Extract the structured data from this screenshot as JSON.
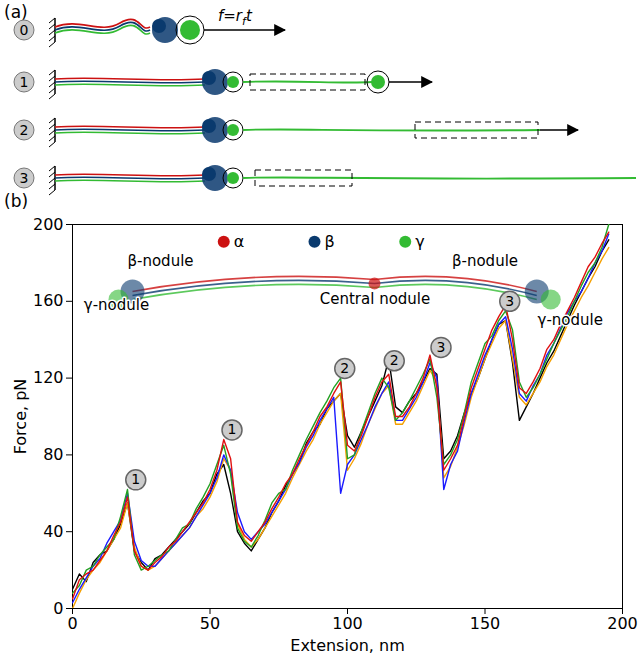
{
  "panel_a": {
    "label": "(a)",
    "stages": [
      "0",
      "1",
      "2",
      "3"
    ],
    "force_label": [
      "f=r",
      "f",
      "t"
    ]
  },
  "chart_data": {
    "type": "line",
    "panel_label": "(b)",
    "x_label": "Extension, nm",
    "y_label": "Force, pN",
    "xlim": [
      0,
      200
    ],
    "ylim": [
      0,
      200
    ],
    "xticks": [
      0,
      50,
      100,
      150,
      200
    ],
    "yticks": [
      0,
      40,
      80,
      120,
      160,
      200
    ],
    "grid": false,
    "x": [
      0,
      2.5,
      5,
      7.5,
      10,
      12.5,
      15,
      17.5,
      20,
      22.5,
      25,
      27.5,
      30,
      32.5,
      35,
      37.5,
      40,
      42.5,
      45,
      47.5,
      50,
      52.5,
      55,
      57.5,
      60,
      62.5,
      65,
      67.5,
      70,
      72.5,
      75,
      77.5,
      80,
      82.5,
      85,
      87.5,
      90,
      92.5,
      95,
      97.5,
      100,
      102.5,
      105,
      107.5,
      110,
      112.5,
      115,
      117.5,
      120,
      122.5,
      125,
      127.5,
      130,
      132.5,
      135,
      137.5,
      140,
      142.5,
      145,
      147.5,
      150,
      152.5,
      155,
      157.5,
      160,
      162.5,
      165,
      167.5,
      170,
      172.5,
      175,
      177.5,
      180,
      182.5,
      185,
      187.5,
      190,
      192.5,
      195
    ],
    "series": [
      {
        "color": "#000000",
        "values": [
          10,
          18,
          14,
          24,
          28,
          30,
          36,
          44,
          55,
          30,
          24,
          20,
          26,
          28,
          32,
          36,
          40,
          44,
          50,
          56,
          60,
          70,
          75,
          60,
          40,
          34,
          30,
          36,
          42,
          50,
          56,
          64,
          70,
          76,
          86,
          92,
          96,
          104,
          108,
          112,
          90,
          84,
          92,
          100,
          108,
          116,
          130,
          105,
          102,
          108,
          112,
          118,
          125,
          122,
          78,
          82,
          90,
          102,
          112,
          120,
          130,
          140,
          148,
          150,
          128,
          98,
          105,
          112,
          120,
          128,
          134,
          142,
          150,
          158,
          165,
          172,
          178,
          186,
          192
        ]
      },
      {
        "color": "#f5a000",
        "values": [
          0,
          8,
          15,
          20,
          24,
          30,
          36,
          42,
          55,
          32,
          22,
          20,
          22,
          26,
          30,
          34,
          38,
          42,
          48,
          52,
          58,
          66,
          78,
          72,
          44,
          36,
          32,
          36,
          42,
          48,
          54,
          60,
          68,
          75,
          82,
          88,
          96,
          102,
          108,
          112,
          72,
          78,
          86,
          96,
          104,
          112,
          116,
          96,
          96,
          102,
          108,
          116,
          124,
          118,
          68,
          74,
          84,
          96,
          110,
          120,
          130,
          138,
          146,
          150,
          130,
          110,
          106,
          112,
          118,
          126,
          132,
          140,
          148,
          155,
          162,
          168,
          175,
          182,
          188
        ]
      },
      {
        "color": "#1a1aff",
        "values": [
          3,
          10,
          16,
          22,
          26,
          34,
          40,
          46,
          60,
          35,
          25,
          22,
          22,
          26,
          30,
          34,
          38,
          42,
          48,
          54,
          60,
          68,
          80,
          72,
          50,
          40,
          36,
          40,
          44,
          50,
          56,
          62,
          70,
          76,
          84,
          90,
          98,
          104,
          110,
          60,
          75,
          80,
          88,
          96,
          105,
          112,
          118,
          98,
          98,
          104,
          110,
          118,
          128,
          120,
          62,
          75,
          82,
          98,
          112,
          122,
          132,
          140,
          148,
          152,
          135,
          112,
          108,
          116,
          122,
          132,
          138,
          146,
          154,
          160,
          165,
          172,
          180,
          186,
          195
        ]
      },
      {
        "color": "#22a022",
        "values": [
          8,
          12,
          20,
          22,
          28,
          32,
          36,
          48,
          62,
          28,
          20,
          22,
          25,
          28,
          30,
          36,
          42,
          44,
          52,
          58,
          65,
          75,
          85,
          70,
          42,
          35,
          32,
          38,
          46,
          55,
          60,
          62,
          72,
          80,
          88,
          95,
          102,
          108,
          115,
          120,
          78,
          80,
          92,
          102,
          112,
          120,
          115,
          98,
          102,
          108,
          115,
          122,
          130,
          110,
          75,
          80,
          88,
          102,
          118,
          128,
          138,
          142,
          150,
          155,
          145,
          118,
          110,
          115,
          122,
          130,
          138,
          145,
          152,
          160,
          168,
          175,
          180,
          188,
          200
        ]
      },
      {
        "color": "#e01010",
        "values": [
          5,
          15,
          18,
          20,
          25,
          30,
          38,
          45,
          58,
          30,
          22,
          20,
          24,
          27,
          32,
          35,
          40,
          45,
          50,
          55,
          62,
          72,
          88,
          78,
          45,
          38,
          35,
          40,
          45,
          52,
          58,
          65,
          70,
          78,
          85,
          92,
          100,
          105,
          112,
          118,
          85,
          82,
          90,
          100,
          110,
          118,
          122,
          100,
          100,
          105,
          112,
          120,
          132,
          115,
          72,
          78,
          85,
          100,
          115,
          125,
          135,
          145,
          152,
          158,
          140,
          115,
          112,
          118,
          125,
          135,
          140,
          148,
          155,
          162,
          170,
          178,
          183,
          190,
          196
        ]
      }
    ],
    "stage_markers": [
      {
        "text": "1",
        "x": 23,
        "y": 67
      },
      {
        "text": "1",
        "x": 58,
        "y": 93
      },
      {
        "text": "2",
        "x": 99,
        "y": 125
      },
      {
        "text": "2",
        "x": 117,
        "y": 129
      },
      {
        "text": "3",
        "x": 134,
        "y": 136
      },
      {
        "text": "3",
        "x": 159,
        "y": 160
      }
    ],
    "inset": {
      "chains": [
        {
          "name": "α",
          "color": "#cc1111",
          "x": 55,
          "y": 191
        },
        {
          "name": "β",
          "color": "#0a3a6e",
          "x": 88,
          "y": 191
        },
        {
          "name": "γ",
          "color": "#33bb33",
          "x": 121,
          "y": 191
        }
      ],
      "labels": [
        {
          "text": "β-nodule",
          "x": 32,
          "y": 181
        },
        {
          "text": "γ-nodule",
          "x": 16,
          "y": 158
        },
        {
          "text": "Central nodule",
          "x": 110,
          "y": 161
        },
        {
          "text": "β-nodule",
          "x": 150,
          "y": 181
        },
        {
          "text": "γ-nodule",
          "x": 181,
          "y": 150
        }
      ]
    }
  }
}
